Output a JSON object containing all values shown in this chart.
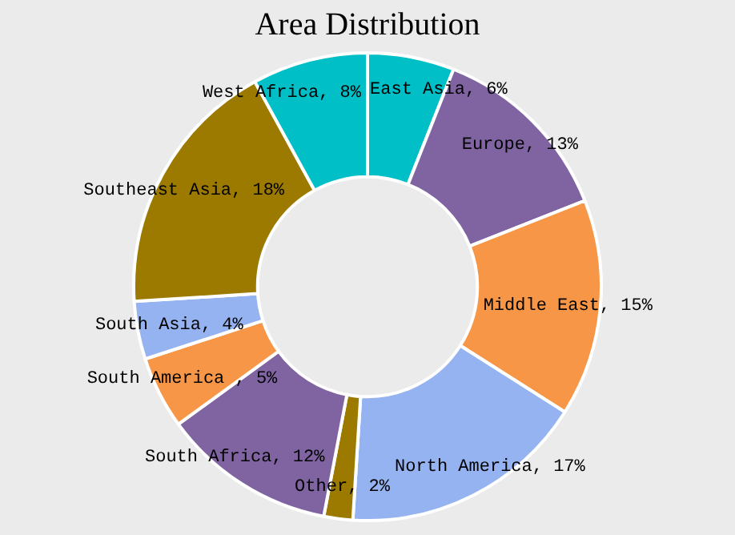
{
  "chart_data": {
    "type": "donut",
    "title": "Area Distribution",
    "categories": [
      "East Asia",
      "Europe",
      "Middle East",
      "North America",
      "Other",
      "South Africa",
      "South America ",
      "South Asia",
      "Southeast Asia",
      "West Africa"
    ],
    "values": [
      6,
      13,
      15,
      17,
      2,
      12,
      5,
      4,
      18,
      8
    ],
    "colors": [
      "#00bfc7",
      "#8064a2",
      "#f79646",
      "#95b3f0",
      "#9c7a00",
      "#8064a2",
      "#f79646",
      "#95b3f0",
      "#9c7a00",
      "#00bfc7"
    ],
    "value_labels": [
      "6%",
      "13%",
      "15%",
      "17%",
      "2%",
      "12%",
      "5%",
      "4%",
      "18%",
      "8%"
    ],
    "legend": false
  }
}
